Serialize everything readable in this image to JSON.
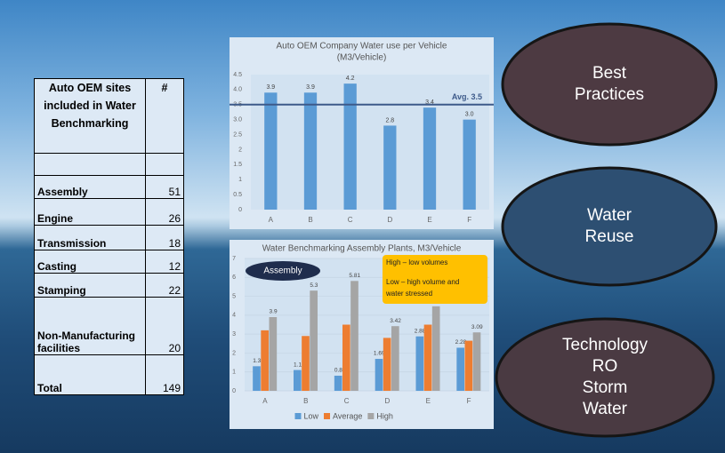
{
  "table": {
    "header": [
      "Auto OEM sites included in Water Benchmarking",
      "#"
    ],
    "rows": [
      [
        "Assembly",
        51
      ],
      [
        "Engine",
        26
      ],
      [
        "Transmission",
        18
      ],
      [
        "Casting",
        12
      ],
      [
        "Stamping",
        22
      ],
      [
        "Non-Manufacturing facilities",
        20
      ],
      [
        "Total",
        149
      ]
    ]
  },
  "chart_data": [
    {
      "type": "bar",
      "title": "Auto OEM Company Water use per Vehicle",
      "subtitle": "(M3/Vehicle)",
      "categories": [
        "A",
        "B",
        "C",
        "D",
        "E",
        "F"
      ],
      "values": [
        3.9,
        3.9,
        4.2,
        2.8,
        3.4,
        3.0
      ],
      "value_labels": [
        "3.9",
        "3.9",
        "4.2",
        "2.8",
        "3.4",
        "3.0"
      ],
      "color": "#5b9bd5",
      "ylim": [
        0,
        4.5
      ],
      "yticks": [
        0,
        0.5,
        1,
        1.5,
        2,
        2.5,
        {
          "value": 3,
          "label": "3.0"
        },
        3.5,
        {
          "value": 4,
          "label": "4.0"
        },
        4.5
      ],
      "grid": false,
      "reference_line": {
        "value": 3.5,
        "label": "Avg. 3.5",
        "color": "#3d5a8a"
      }
    },
    {
      "type": "bar",
      "title": "Water Benchmarking Assembly Plants, M3/Vehicle",
      "categories": [
        "A",
        "B",
        "C",
        "D",
        "E",
        "F"
      ],
      "series": [
        {
          "name": "Low",
          "color": "#5b9bd5",
          "values": [
            1.3,
            1.1,
            0.8,
            1.69,
            2.88,
            2.28
          ],
          "data_labels": true
        },
        {
          "name": "Average",
          "color": "#ed7d31",
          "values": [
            3.2,
            2.9,
            3.5,
            2.8,
            3.5,
            2.65
          ],
          "data_labels": false
        },
        {
          "name": "High",
          "color": "#a5a5a5",
          "values": [
            3.9,
            5.3,
            5.81,
            3.42,
            4.47,
            3.09
          ],
          "data_labels": true
        }
      ],
      "ylim": [
        0,
        7
      ],
      "yticks": [
        0,
        1,
        2,
        3,
        4,
        5,
        6,
        7
      ],
      "grid": true,
      "legend": "bottom",
      "annotations": {
        "badge": "Assembly",
        "note": [
          "High – low volumes",
          "Low – high volume and water stressed"
        ]
      }
    }
  ],
  "callouts": [
    {
      "lines": [
        "Best",
        "Practices"
      ],
      "color": "#4d3a42"
    },
    {
      "lines": [
        "Water",
        "Reuse"
      ],
      "color": "#2d4f72"
    },
    {
      "lines": [
        "Technology",
        "RO",
        "Storm",
        "Water"
      ],
      "color": "#4a3a42"
    }
  ]
}
